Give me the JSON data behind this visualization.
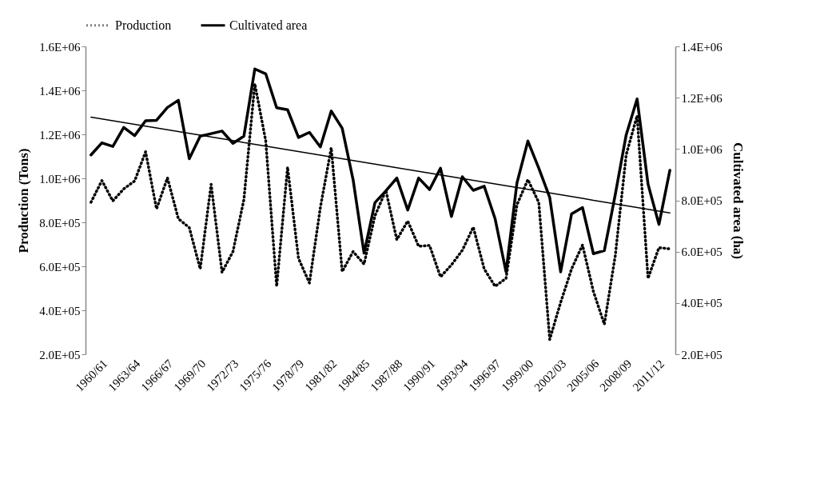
{
  "chart_data": {
    "type": "line",
    "ylabel": "Production (Tons)",
    "y2label": "Cultivated area (ha)",
    "categories": [
      "1960/61",
      null,
      null,
      "1963/64",
      null,
      null,
      "1966/67",
      null,
      null,
      "1969/70",
      null,
      null,
      "1972/73",
      null,
      null,
      "1975/76",
      null,
      null,
      "1978/79",
      null,
      null,
      "1981/82",
      null,
      null,
      "1984/85",
      null,
      null,
      "1987/88",
      null,
      null,
      "1990/91",
      null,
      null,
      "1993/94",
      null,
      null,
      "1996/97",
      null,
      null,
      "1999/00",
      null,
      null,
      "2002/03",
      null,
      null,
      "2005/06",
      null,
      null,
      "2008/09",
      null,
      null,
      "2011/12",
      null,
      null
    ],
    "series": [
      {
        "name": "Production",
        "color": "#000000",
        "line_style": "dotted",
        "values": [
          891000,
          990000,
          897000,
          952000,
          988000,
          1121000,
          861000,
          1002000,
          816000,
          776000,
          588000,
          973000,
          573000,
          667000,
          903000,
          1430000,
          1170000,
          509000,
          1051000,
          636000,
          524000,
          867000,
          1139000,
          576000,
          667000,
          610000,
          830000,
          945000,
          721000,
          806000,
          691000,
          695000,
          552000,
          606000,
          673000,
          778000,
          588000,
          509000,
          545000,
          880000,
          994000,
          890000,
          267000,
          436000,
          588000,
          697000,
          485000,
          336000,
          648000,
          1107000,
          1285000,
          545000,
          685000,
          679000
        ]
      },
      {
        "name": "Cultivated area",
        "color": "#000000",
        "line_style": "solid",
        "axis": "y2",
        "values": [
          977000,
          1024000,
          1010000,
          1084000,
          1052000,
          1110000,
          1112000,
          1162000,
          1190000,
          962000,
          1050000,
          1060000,
          1070000,
          1022000,
          1050000,
          1312000,
          1293000,
          1161000,
          1153000,
          1045000,
          1065000,
          1008000,
          1148000,
          1081000,
          880000,
          594000,
          791000,
          837000,
          887000,
          762000,
          887000,
          842000,
          925000,
          737000,
          892000,
          839000,
          855000,
          728000,
          521000,
          868000,
          1031000,
          925000,
          811000,
          521000,
          747000,
          772000,
          592000,
          604000,
          822000,
          1055000,
          1195000,
          863000,
          706000,
          917000
        ]
      },
      {
        "color": "#000000",
        "line_style": "solid",
        "axis": "y2",
        "values": [
          1124000,
          1117000,
          1110000,
          1103000,
          1096000,
          1089000,
          1082000,
          1075000,
          1068000,
          1061000,
          1054000,
          1047000,
          1040000,
          1033000,
          1025000,
          1018000,
          1011000,
          1004000,
          997000,
          990000,
          983000,
          976000,
          969000,
          962000,
          955000,
          948000,
          941000,
          934000,
          927000,
          920000,
          913000,
          906000,
          899000,
          892000,
          885000,
          878000,
          871000,
          864000,
          857000,
          850000,
          843000,
          836000,
          829000,
          822000,
          815000,
          808000,
          800000,
          793000,
          786000,
          779000,
          772000,
          765000,
          758000,
          751000
        ]
      }
    ],
    "ylim": [
      200000,
      1600000
    ],
    "yticks": [
      {
        "value": 200000,
        "label": "2.0E+05"
      },
      {
        "value": 400000,
        "label": "4.0E+05"
      },
      {
        "value": 600000,
        "label": "6.0E+05"
      },
      {
        "value": 800000,
        "label": "8.0E+05"
      },
      {
        "value": 1000000,
        "label": "1.0E+06"
      },
      {
        "value": 1200000,
        "label": "1.2E+06"
      },
      {
        "value": 1400000,
        "label": "1.4E+06"
      },
      {
        "value": 1600000,
        "label": "1.6E+06"
      }
    ],
    "y2lim": [
      200000,
      1400000
    ],
    "y2ticks": [
      {
        "value": 200000,
        "label": "2.0E+05"
      },
      {
        "value": 400000,
        "label": "4.0E+05"
      },
      {
        "value": 600000,
        "label": "6.0E+05"
      },
      {
        "value": 800000,
        "label": "8.0E+05"
      },
      {
        "value": 1000000,
        "label": "1.0E+06"
      },
      {
        "value": 1200000,
        "label": "1.2E+06"
      },
      {
        "value": 1400000,
        "label": "1.4E+06"
      }
    ],
    "grid": false,
    "legend": "top",
    "marker": "none"
  }
}
